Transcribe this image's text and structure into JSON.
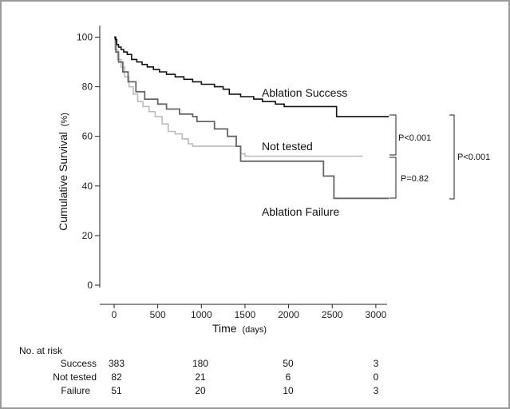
{
  "chart_data": {
    "type": "line",
    "title": "",
    "xlabel": "Time",
    "xlabel_unit": "(days)",
    "ylabel": "Cumulative Survival",
    "ylabel_unit": "(%)",
    "xlim": [
      0,
      3150
    ],
    "ylim": [
      0,
      100
    ],
    "x_ticks": [
      0,
      500,
      1000,
      1500,
      2000,
      2500,
      3000
    ],
    "y_ticks": [
      0,
      20,
      40,
      60,
      80,
      100
    ],
    "grid": false,
    "legend": "none",
    "series": [
      {
        "name": "Ablation Success",
        "color": "#111111",
        "points": [
          [
            0,
            100
          ],
          [
            15,
            99
          ],
          [
            30,
            97
          ],
          [
            50,
            96
          ],
          [
            80,
            95
          ],
          [
            110,
            94
          ],
          [
            150,
            93
          ],
          [
            200,
            91
          ],
          [
            260,
            90
          ],
          [
            320,
            89
          ],
          [
            380,
            88
          ],
          [
            450,
            87
          ],
          [
            520,
            86
          ],
          [
            600,
            85
          ],
          [
            700,
            84
          ],
          [
            800,
            83
          ],
          [
            900,
            82
          ],
          [
            1000,
            81
          ],
          [
            1150,
            80
          ],
          [
            1250,
            79
          ],
          [
            1320,
            77
          ],
          [
            1450,
            76
          ],
          [
            1600,
            75
          ],
          [
            1700,
            74
          ],
          [
            1850,
            73
          ],
          [
            1950,
            72
          ],
          [
            2550,
            72
          ],
          [
            2550,
            68
          ],
          [
            3150,
            68
          ]
        ]
      },
      {
        "name": "Not tested",
        "color": "#bbbbbb",
        "points": [
          [
            0,
            100
          ],
          [
            10,
            95
          ],
          [
            40,
            91
          ],
          [
            80,
            88
          ],
          [
            120,
            84
          ],
          [
            170,
            80
          ],
          [
            220,
            77
          ],
          [
            270,
            74
          ],
          [
            330,
            72
          ],
          [
            400,
            70
          ],
          [
            470,
            68
          ],
          [
            550,
            65
          ],
          [
            620,
            62
          ],
          [
            700,
            61
          ],
          [
            780,
            59
          ],
          [
            850,
            57
          ],
          [
            900,
            56
          ],
          [
            1450,
            56
          ],
          [
            1450,
            53
          ],
          [
            1500,
            52
          ],
          [
            2850,
            52
          ]
        ]
      },
      {
        "name": "Ablation Failure",
        "color": "#666666",
        "points": [
          [
            0,
            100
          ],
          [
            20,
            94
          ],
          [
            50,
            90
          ],
          [
            100,
            86
          ],
          [
            160,
            82
          ],
          [
            250,
            78
          ],
          [
            350,
            75
          ],
          [
            500,
            73
          ],
          [
            600,
            71
          ],
          [
            750,
            69
          ],
          [
            900,
            68
          ],
          [
            950,
            66
          ],
          [
            1150,
            63
          ],
          [
            1300,
            60
          ],
          [
            1400,
            56
          ],
          [
            1450,
            50
          ],
          [
            2400,
            50
          ],
          [
            2400,
            44
          ],
          [
            2520,
            44
          ],
          [
            2520,
            35
          ],
          [
            3150,
            35
          ]
        ]
      }
    ],
    "annotations": [
      {
        "text": "P<0.001",
        "between": [
          "Ablation Success",
          "Not tested"
        ]
      },
      {
        "text": "P=0.82",
        "between": [
          "Not tested",
          "Ablation Failure"
        ]
      },
      {
        "text": "P<0.001",
        "between": [
          "Ablation Success",
          "Ablation Failure"
        ]
      }
    ],
    "risk_table": {
      "title": "No. at risk",
      "rows": [
        {
          "label": "Success",
          "values": [
            383,
            180,
            50,
            3
          ]
        },
        {
          "label": "Not tested",
          "values": [
            82,
            21,
            6,
            0
          ]
        },
        {
          "label": "Failure",
          "values": [
            51,
            20,
            10,
            3
          ]
        }
      ]
    }
  }
}
